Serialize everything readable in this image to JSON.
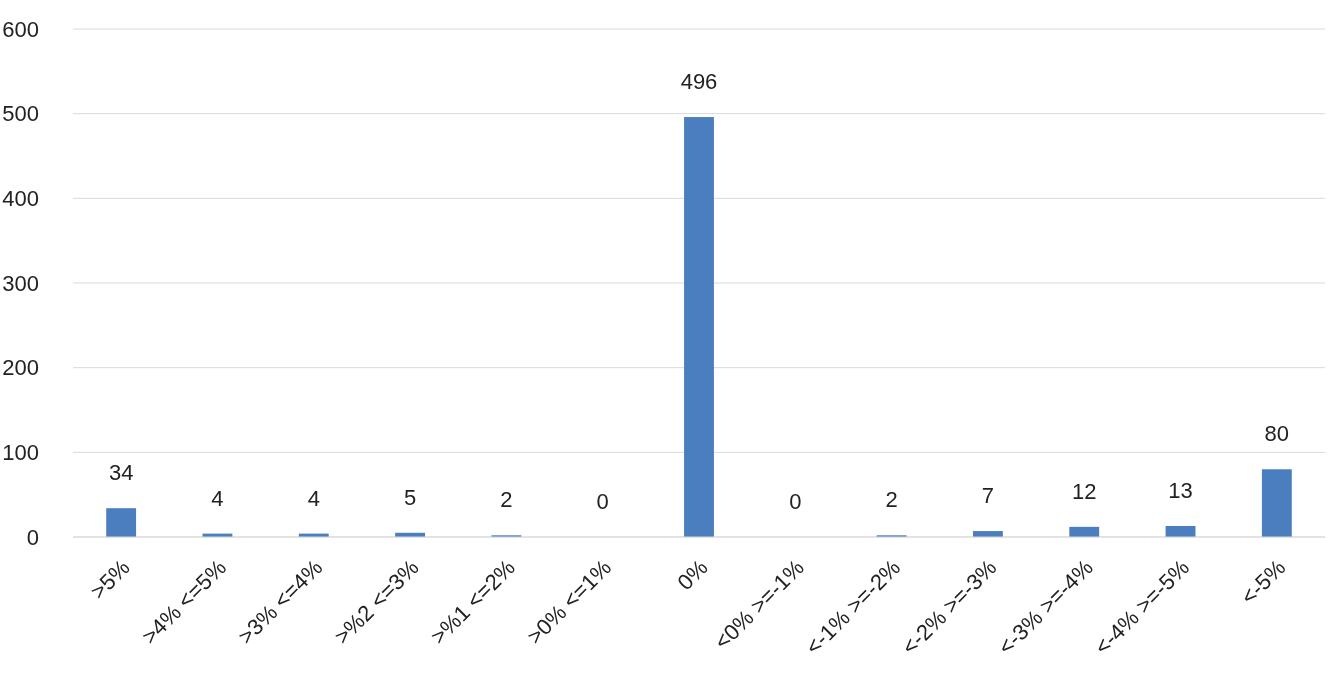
{
  "chart_data": {
    "type": "bar",
    "categories": [
      ">5%",
      ">4% <=5%",
      ">3% <=4%",
      ">%2 <=3%",
      ">%1 <=2%",
      ">0% <=1%",
      "0%",
      "<0% >=-1%",
      "<-1% >=-2%",
      "<-2% >=-3%",
      "<-3% >=-4%",
      "<-4% >=-5%",
      "<-5%"
    ],
    "values": [
      34,
      4,
      4,
      5,
      2,
      0,
      496,
      0,
      2,
      7,
      12,
      13,
      80
    ],
    "color": "#4a7ebf",
    "ylim": [
      0,
      600
    ],
    "yticks": [
      0,
      100,
      200,
      300,
      400,
      500,
      600
    ],
    "grid": "y",
    "data_labels": true
  }
}
